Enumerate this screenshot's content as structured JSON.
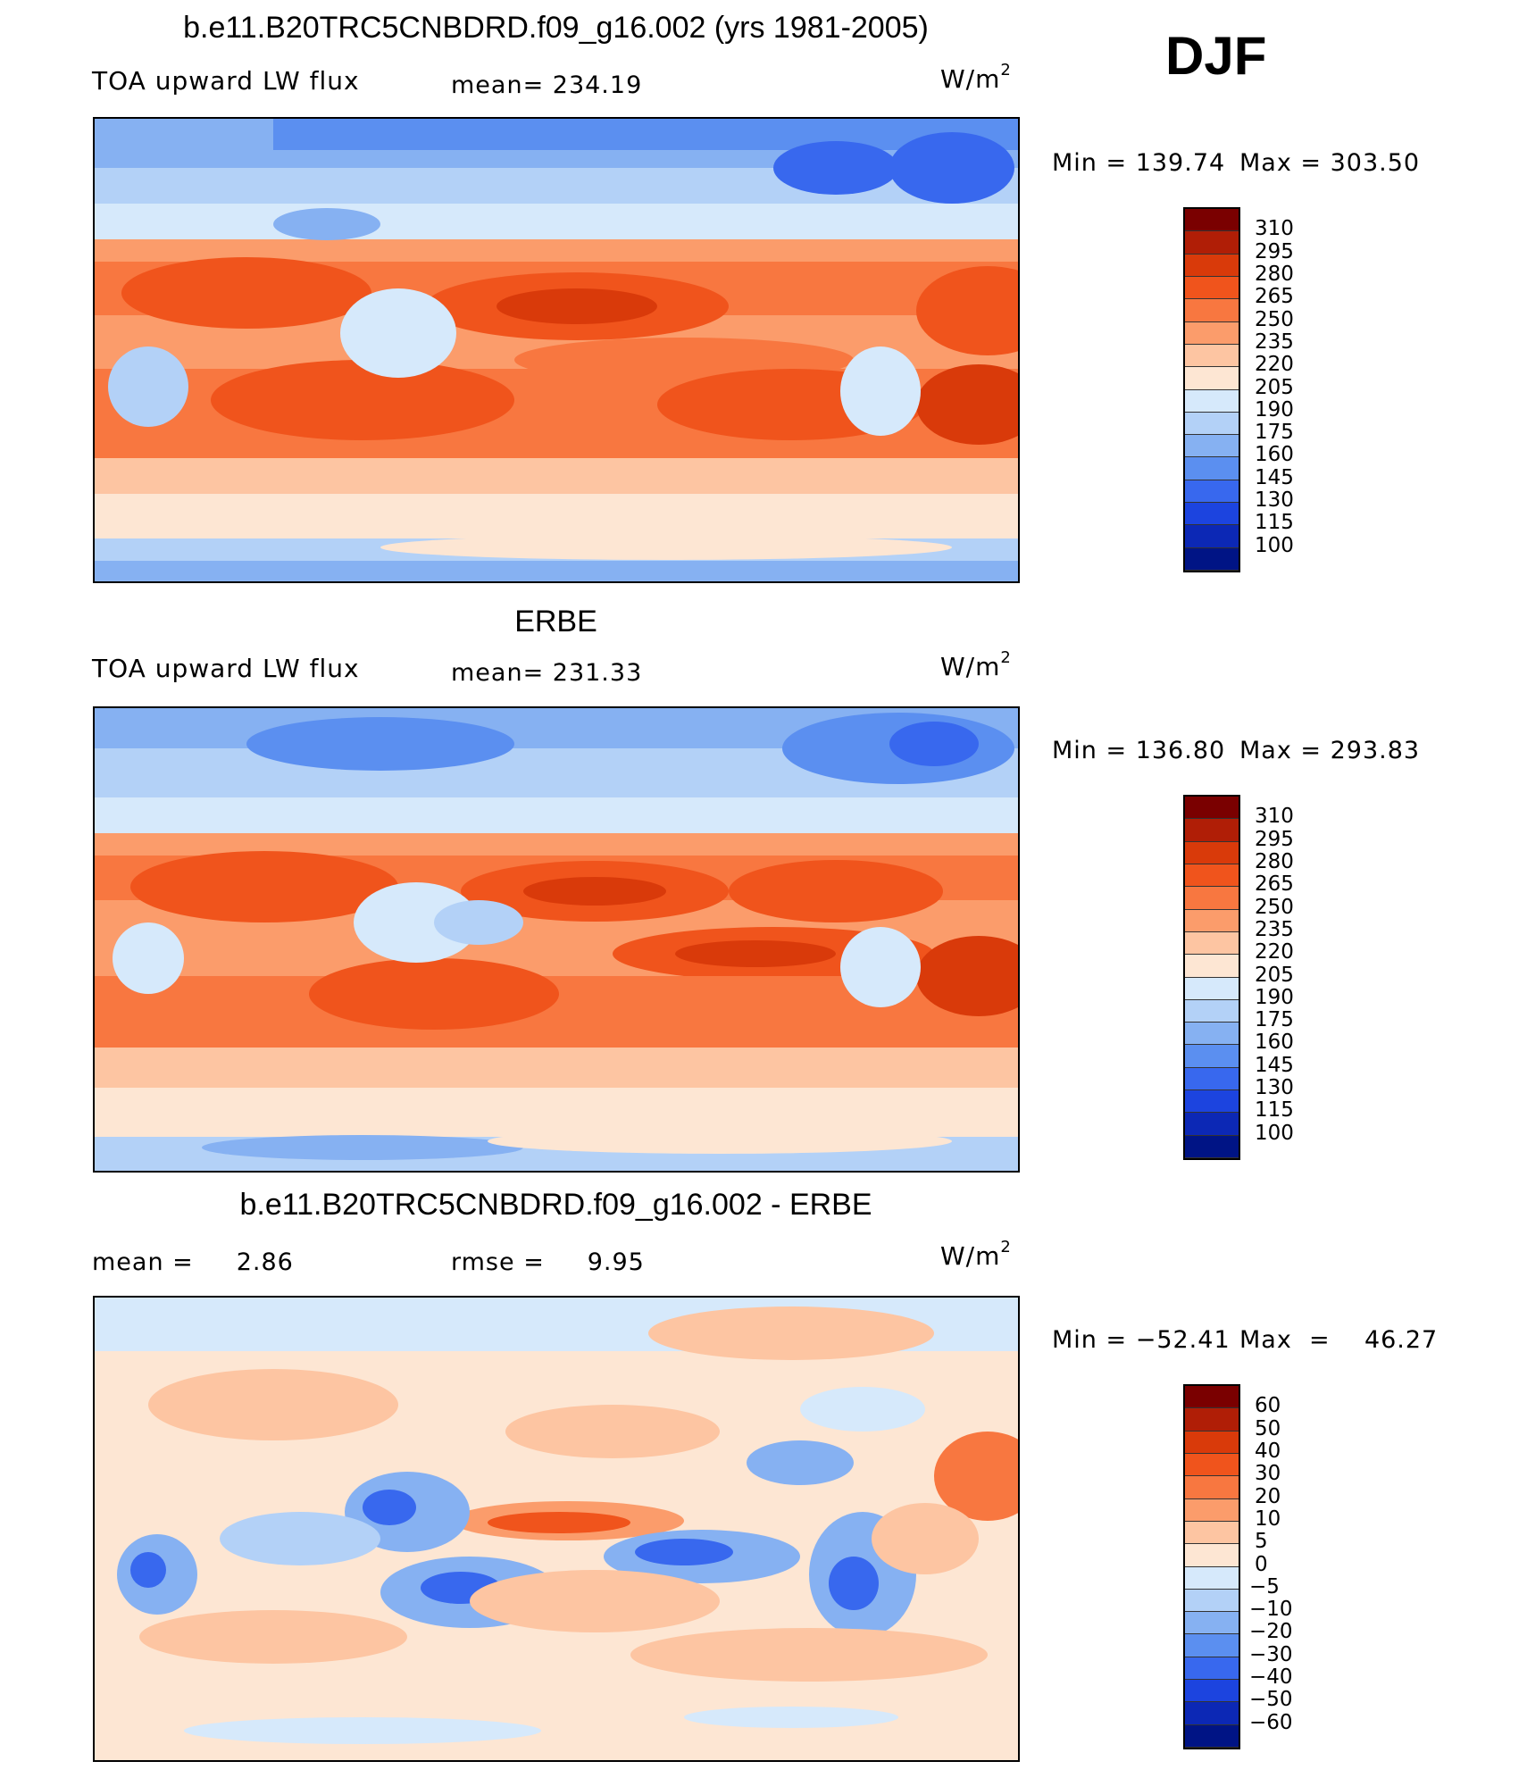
{
  "season": "DJF",
  "panels": [
    {
      "title": "b.e11.B20TRC5CNBDRD.f09_g16.002 (yrs 1981-2005)",
      "left_label": "TOA upward LW flux",
      "center_label": "mean=  234.19",
      "units_base": "W/m",
      "units_exp": "2",
      "min_text": "Min  =  139.74",
      "max_text": "Max  =  303.50",
      "colorbar": {
        "labels": [
          "310",
          "295",
          "280",
          "265",
          "250",
          "235",
          "220",
          "205",
          "190",
          "175",
          "160",
          "145",
          "130",
          "115",
          "100"
        ],
        "colors": [
          "#7a0000",
          "#b01e06",
          "#d93a0a",
          "#f0541c",
          "#f87740",
          "#fb9c6b",
          "#fdc5a2",
          "#fde6d3",
          "#d6e9fb",
          "#b3d1f7",
          "#86b1f2",
          "#5b8ff0",
          "#3868ee",
          "#1c44df",
          "#0c28b5",
          "#001485"
        ]
      }
    },
    {
      "title": "ERBE",
      "left_label": "TOA upward LW flux",
      "center_label": "mean=  231.33",
      "units_base": "W/m",
      "units_exp": "2",
      "min_text": "Min  =  136.80",
      "max_text": "Max  =  293.83",
      "colorbar": {
        "labels": [
          "310",
          "295",
          "280",
          "265",
          "250",
          "235",
          "220",
          "205",
          "190",
          "175",
          "160",
          "145",
          "130",
          "115",
          "100"
        ],
        "colors": [
          "#7a0000",
          "#b01e06",
          "#d93a0a",
          "#f0541c",
          "#f87740",
          "#fb9c6b",
          "#fdc5a2",
          "#fde6d3",
          "#d6e9fb",
          "#b3d1f7",
          "#86b1f2",
          "#5b8ff0",
          "#3868ee",
          "#1c44df",
          "#0c28b5",
          "#001485"
        ]
      }
    },
    {
      "title": "b.e11.B20TRC5CNBDRD.f09_g16.002 - ERBE",
      "left_label": "mean =     2.86",
      "center_label": "rmse =     9.95",
      "units_base": "W/m",
      "units_exp": "2",
      "min_text": "Min  =  −52.41",
      "max_text": "Max  =    46.27",
      "colorbar": {
        "labels": [
          "60",
          "50",
          "40",
          "30",
          "20",
          "10",
          "5",
          "0",
          "−5",
          "−10",
          "−20",
          "−30",
          "−40",
          "−50",
          "−60"
        ],
        "colors": [
          "#7a0000",
          "#b01e06",
          "#d93a0a",
          "#f0541c",
          "#f87740",
          "#fb9c6b",
          "#fdc5a2",
          "#fde6d3",
          "#d6e9fb",
          "#b3d1f7",
          "#86b1f2",
          "#5b8ff0",
          "#3868ee",
          "#1c44df",
          "#0c28b5",
          "#001485"
        ]
      }
    }
  ]
}
